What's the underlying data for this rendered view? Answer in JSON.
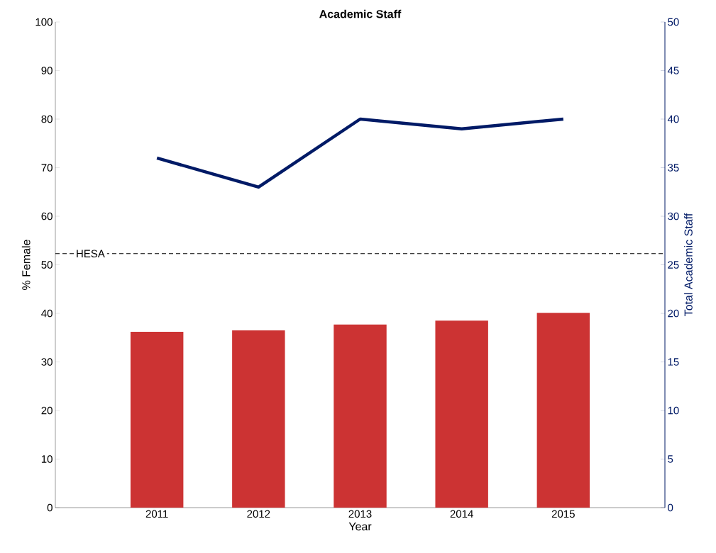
{
  "chart_data": {
    "type": "bar",
    "title": "Academic Staff",
    "xlabel": "Year",
    "ylabel": "% Female",
    "y2label": "Total Academic Staff",
    "categories": [
      "2011",
      "2012",
      "2013",
      "2014",
      "2015"
    ],
    "series": [
      {
        "color": "#cc3333",
        "values": [
          36.2,
          36.5,
          37.7,
          38.5,
          40.1
        ]
      },
      {
        "type": "line",
        "axis": "y2",
        "color": "#001a66",
        "values": [
          36,
          33,
          40,
          39,
          40
        ]
      }
    ],
    "ylim": [
      0,
      100
    ],
    "yticks": [
      0,
      10,
      20,
      30,
      40,
      50,
      60,
      70,
      80,
      90,
      100
    ],
    "y2lim": [
      0,
      50
    ],
    "y2ticks": [
      0,
      5,
      10,
      15,
      20,
      25,
      30,
      35,
      40,
      45,
      50
    ],
    "ref_lines": [
      {
        "axis": "y",
        "value": 52.3,
        "label": "HESA",
        "color": "#000000",
        "line_style": "dashed"
      }
    ]
  }
}
